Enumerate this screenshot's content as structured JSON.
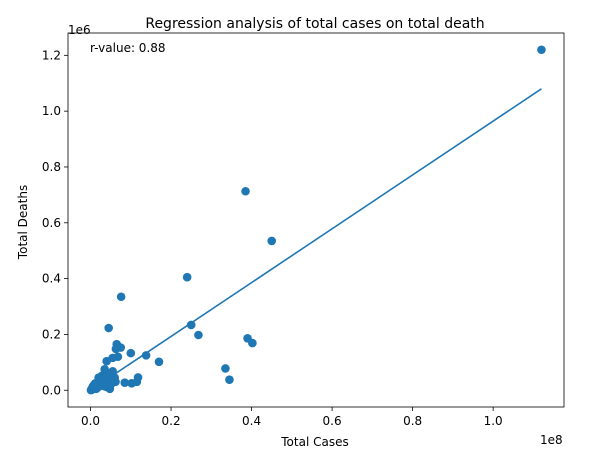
{
  "chart_data": {
    "type": "scatter",
    "title": "Regression analysis of total cases on total death",
    "xlabel": "Total Cases",
    "ylabel": "Total Deaths",
    "x_scale_label": "1e8",
    "y_scale_label": "1e6",
    "annotation": "r-value: 0.88",
    "xlim": [
      -0.056,
      1.176
    ],
    "ylim": [
      -0.06,
      1.28
    ],
    "x_ticks": [
      0.0,
      0.2,
      0.4,
      0.6,
      0.8,
      1.0
    ],
    "x_tick_labels": [
      "0.0",
      "0.2",
      "0.4",
      "0.6",
      "0.8",
      "1.0"
    ],
    "y_ticks": [
      0.0,
      0.2,
      0.4,
      0.6,
      0.8,
      1.0,
      1.2
    ],
    "y_tick_labels": [
      "0.0",
      "0.2",
      "0.4",
      "0.6",
      "0.8",
      "1.0",
      "1.2"
    ],
    "grid": false,
    "color": "#1f77b4",
    "regression_line": {
      "x": [
        0.0,
        1.12
      ],
      "y": [
        0.0,
        1.08
      ]
    },
    "points": [
      [
        1.12,
        1.22
      ],
      [
        0.385,
        0.713
      ],
      [
        0.45,
        0.535
      ],
      [
        0.24,
        0.405
      ],
      [
        0.076,
        0.335
      ],
      [
        0.25,
        0.234
      ],
      [
        0.045,
        0.223
      ],
      [
        0.268,
        0.198
      ],
      [
        0.39,
        0.186
      ],
      [
        0.402,
        0.169
      ],
      [
        0.065,
        0.165
      ],
      [
        0.075,
        0.153
      ],
      [
        0.063,
        0.148
      ],
      [
        0.138,
        0.125
      ],
      [
        0.1,
        0.133
      ],
      [
        0.068,
        0.12
      ],
      [
        0.055,
        0.116
      ],
      [
        0.04,
        0.104
      ],
      [
        0.17,
        0.102
      ],
      [
        0.335,
        0.078
      ],
      [
        0.035,
        0.075
      ],
      [
        0.055,
        0.068
      ],
      [
        0.118,
        0.046
      ],
      [
        0.345,
        0.038
      ],
      [
        0.06,
        0.045
      ],
      [
        0.045,
        0.04
      ],
      [
        0.085,
        0.027
      ],
      [
        0.102,
        0.025
      ],
      [
        0.115,
        0.03
      ],
      [
        0.062,
        0.03
      ],
      [
        0.02,
        0.045
      ],
      [
        0.025,
        0.03
      ],
      [
        0.03,
        0.02
      ],
      [
        0.04,
        0.012
      ],
      [
        0.048,
        0.005
      ],
      [
        0.015,
        0.015
      ],
      [
        0.01,
        0.01
      ],
      [
        0.008,
        0.006
      ],
      [
        0.005,
        0.004
      ],
      [
        0.003,
        0.002
      ],
      [
        0.002,
        0.001
      ],
      [
        0.001,
        0.0005
      ],
      [
        0.012,
        0.025
      ],
      [
        0.018,
        0.01
      ],
      [
        0.022,
        0.038
      ],
      [
        0.028,
        0.052
      ],
      [
        0.033,
        0.015
      ],
      [
        0.037,
        0.028
      ],
      [
        0.042,
        0.06
      ],
      [
        0.05,
        0.02
      ],
      [
        0.058,
        0.035
      ],
      [
        0.006,
        0.014
      ],
      [
        0.014,
        0.005
      ],
      [
        0.009,
        0.02
      ],
      [
        0.004,
        0.008
      ]
    ]
  }
}
